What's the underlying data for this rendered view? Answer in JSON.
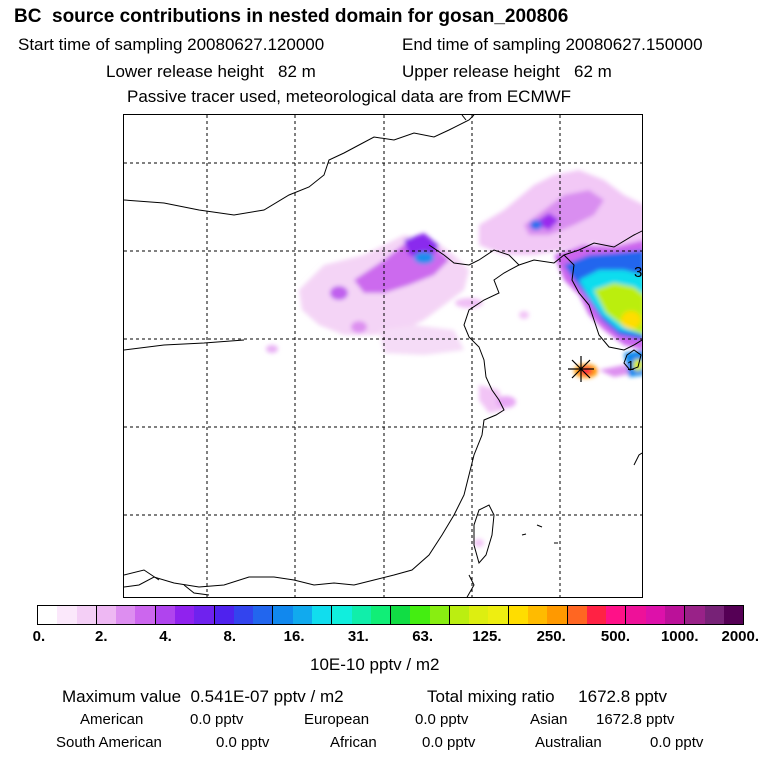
{
  "header": {
    "title": "BC  source contributions in nested domain for gosan_200806",
    "start_label": "Start time of sampling 20080627.120000",
    "end_label": "End time of sampling 20080627.150000",
    "lower_label": "Lower release height   82 m",
    "upper_label": "Upper release height   62 m",
    "note": "Passive tracer used, meteorological data are from ECMWF"
  },
  "map": {
    "marker_label": "3",
    "marker_label_2": "1"
  },
  "colorbar": {
    "colors": [
      "#ffffff",
      "#fbe8fb",
      "#f4cff6",
      "#eeb8f3",
      "#dd8ef0",
      "#cc66ee",
      "#b044ee",
      "#9022ee",
      "#6f22ee",
      "#4f22ee",
      "#3344ee",
      "#2266ee",
      "#1188ee",
      "#11aaee",
      "#11ddee",
      "#11eedd",
      "#11eeaa",
      "#11ee77",
      "#11dd44",
      "#44ee11",
      "#88ee11",
      "#bbee11",
      "#ddee11",
      "#eeee11",
      "#ffdd00",
      "#ffbb00",
      "#ff9900",
      "#ff6622",
      "#ff2244",
      "#ff1188",
      "#ee1199",
      "#dd11aa",
      "#bb1199",
      "#992288",
      "#772277",
      "#550055"
    ],
    "ticks": [
      "0.",
      "2.",
      "4.",
      "8.",
      "16.",
      "31.",
      "63.",
      "125.",
      "250.",
      "500.",
      "1000.",
      "2000."
    ],
    "unit": "10E-10 pptv / m2"
  },
  "stats": {
    "max_value": "Maximum value  0.541E-07 pptv / m2",
    "total_mixing": "Total mixing ratio     1672.8 pptv",
    "american_label": "American",
    "american_value": "0.0 pptv",
    "european_label": "European",
    "european_value": "0.0 pptv",
    "asian_label": "Asian",
    "asian_value": "1672.8 pptv",
    "south_american_label": "South American",
    "south_american_value": "0.0 pptv",
    "african_label": "African",
    "african_value": "0.0 pptv",
    "australian_label": "Australian",
    "australian_value": "0.0 pptv"
  }
}
